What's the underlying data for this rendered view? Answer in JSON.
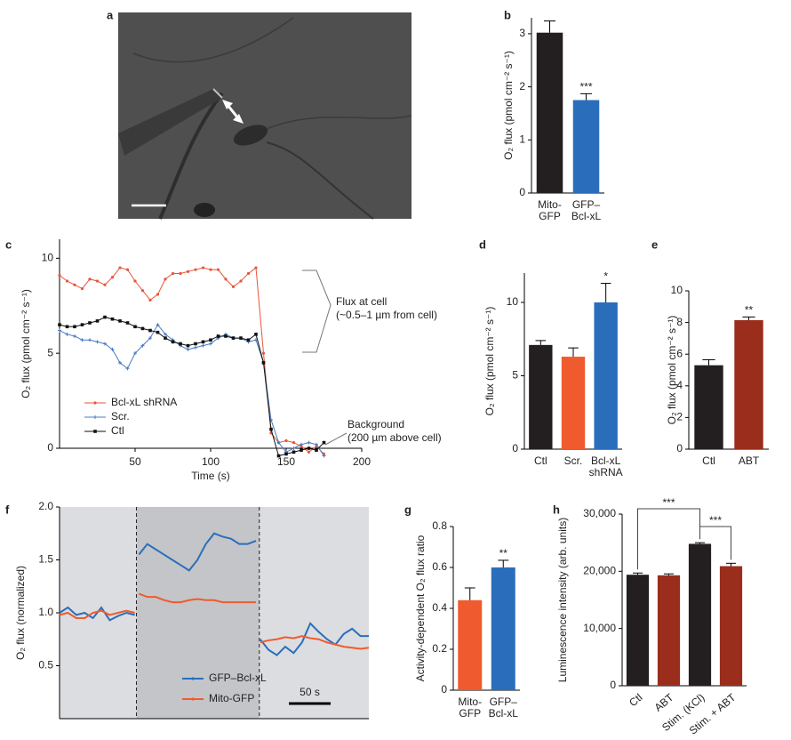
{
  "chart_data": [
    {
      "type": "image",
      "panel": "a"
    },
    {
      "type": "bar",
      "panel": "b",
      "ylabel": "O₂ flux (pmol cm⁻² s⁻¹)",
      "categories": [
        [
          "Mito-",
          "GFP"
        ],
        [
          "GFP–",
          "Bcl-xL"
        ]
      ],
      "values": [
        3.02,
        1.75
      ],
      "errors": [
        0.22,
        0.12
      ],
      "colors": [
        "#231f20",
        "#2a6ebb"
      ],
      "significance": [
        null,
        "***"
      ],
      "ylim": [
        0,
        3.3
      ],
      "yticks": [
        0,
        1,
        2,
        3
      ]
    },
    {
      "type": "line",
      "panel": "c",
      "xlabel": "Time (s)",
      "ylabel": "O₂ flux (pmol cm⁻² s⁻¹)",
      "x": [
        0,
        5,
        10,
        15,
        20,
        25,
        30,
        35,
        40,
        45,
        50,
        55,
        60,
        65,
        70,
        75,
        80,
        85,
        90,
        95,
        100,
        105,
        110,
        115,
        120,
        125,
        130,
        135,
        140,
        145,
        150,
        155,
        160,
        165,
        170,
        175
      ],
      "series": [
        {
          "name": "Bcl-xL shRNA",
          "color": "#e8553a",
          "marker": "dot",
          "values": [
            9.1,
            8.8,
            8.6,
            8.4,
            8.9,
            8.8,
            8.6,
            9.0,
            9.5,
            9.4,
            8.8,
            8.3,
            7.8,
            8.1,
            8.9,
            9.2,
            9.2,
            9.3,
            9.4,
            9.5,
            9.4,
            9.4,
            8.9,
            8.5,
            8.8,
            9.2,
            9.5,
            5.0,
            0.8,
            0.3,
            0.4,
            0.3,
            0.1,
            -0.2,
            0.1,
            -0.3
          ]
        },
        {
          "name": "Scr.",
          "color": "#4a7cc0",
          "marker": "plus",
          "values": [
            6.2,
            6.0,
            5.9,
            5.7,
            5.7,
            5.6,
            5.5,
            5.2,
            4.5,
            4.2,
            5.0,
            5.4,
            5.8,
            6.5,
            6.0,
            5.7,
            5.4,
            5.2,
            5.3,
            5.4,
            5.5,
            5.8,
            6.0,
            5.8,
            5.8,
            5.6,
            5.7,
            4.5,
            1.5,
            0.3,
            -0.2,
            0.0,
            0.2,
            0.3,
            0.2,
            -0.4
          ]
        },
        {
          "name": "Ctl",
          "color": "#111111",
          "marker": "square",
          "values": [
            6.5,
            6.4,
            6.4,
            6.5,
            6.6,
            6.7,
            6.9,
            6.8,
            6.7,
            6.6,
            6.4,
            6.3,
            6.2,
            6.1,
            5.8,
            5.6,
            5.5,
            5.4,
            5.5,
            5.6,
            5.7,
            5.9,
            5.9,
            5.8,
            5.8,
            5.7,
            6.0,
            4.5,
            1.0,
            -0.4,
            -0.3,
            -0.2,
            -0.1,
            0.0,
            -0.1,
            0.3
          ]
        }
      ],
      "xlim": [
        0,
        200
      ],
      "xticks": [
        50,
        100,
        150,
        200
      ],
      "ylim": [
        0,
        11
      ],
      "yticks": [
        0,
        5,
        10
      ],
      "legend": "lower left",
      "annotations": [
        [
          "Flux at cell",
          "(~0.5–1 µm from cell)"
        ],
        [
          "Background",
          "(200 µm above cell)"
        ]
      ]
    },
    {
      "type": "bar",
      "panel": "d",
      "ylabel": "O₂ flux (pmol cm⁻² s⁻¹)",
      "categories": [
        [
          "Ctl"
        ],
        [
          "Scr."
        ],
        [
          "Bcl-xL",
          "shRNA"
        ]
      ],
      "values": [
        7.1,
        6.3,
        10.0
      ],
      "errors": [
        0.3,
        0.6,
        1.3
      ],
      "colors": [
        "#231f20",
        "#ef5b2e",
        "#2a6ebb"
      ],
      "significance": [
        null,
        null,
        "*"
      ],
      "ylim": [
        0,
        12
      ],
      "yticks": [
        0,
        5,
        10
      ]
    },
    {
      "type": "bar",
      "panel": "e",
      "ylabel": "O₂ flux (pmol cm⁻² s⁻¹)",
      "categories": [
        [
          "Ctl"
        ],
        [
          "ABT"
        ]
      ],
      "values": [
        5.3,
        8.15
      ],
      "errors": [
        0.35,
        0.2
      ],
      "colors": [
        "#231f20",
        "#9b2d1c"
      ],
      "significance": [
        null,
        "**"
      ],
      "ylim": [
        0,
        10
      ],
      "yticks": [
        0,
        2,
        4,
        6,
        8,
        10
      ]
    },
    {
      "type": "line",
      "panel": "f",
      "ylabel": "O₂ flux (normalized)",
      "x": [
        0,
        10,
        20,
        30,
        40,
        50,
        60,
        70,
        80,
        90,
        92,
        95,
        105,
        115,
        125,
        135,
        145,
        155,
        165,
        175,
        185,
        195,
        205,
        215,
        225,
        235,
        237,
        240,
        250,
        260,
        270,
        280,
        290,
        300,
        310,
        320,
        330,
        340,
        350,
        360,
        370
      ],
      "series": [
        {
          "name": "GFP–Bcl-xL",
          "color": "#2a6ebb",
          "values": [
            1.0,
            1.05,
            0.98,
            1.0,
            0.95,
            1.05,
            0.93,
            0.97,
            1.0,
            0.98,
            null,
            1.55,
            1.65,
            1.6,
            1.55,
            1.5,
            1.45,
            1.4,
            1.5,
            1.65,
            1.75,
            1.72,
            1.7,
            1.65,
            1.65,
            1.68,
            null,
            0.75,
            0.65,
            0.6,
            0.68,
            0.62,
            0.72,
            0.9,
            0.82,
            0.75,
            0.7,
            0.8,
            0.85,
            0.78,
            0.78
          ]
        },
        {
          "name": "Mito-GFP",
          "color": "#ef5b2e",
          "values": [
            0.98,
            1.0,
            0.95,
            0.95,
            1.0,
            1.02,
            0.98,
            1.0,
            1.02,
            1.0,
            null,
            1.18,
            1.15,
            1.15,
            1.12,
            1.1,
            1.1,
            1.12,
            1.13,
            1.12,
            1.12,
            1.1,
            1.1,
            1.1,
            1.1,
            1.1,
            null,
            0.72,
            0.74,
            0.75,
            0.77,
            0.76,
            0.78,
            0.76,
            0.75,
            0.72,
            0.7,
            0.68,
            0.67,
            0.66,
            0.67
          ]
        }
      ],
      "xlim": [
        0,
        370
      ],
      "ylim": [
        0,
        2
      ],
      "yticks": [
        0.5,
        {
          "value": 1,
          "label": "1.0"
        },
        1.5,
        {
          "value": 2,
          "label": "2.0"
        }
      ],
      "shaded": [
        92,
        239
      ],
      "legend": "lower center",
      "scalebar": {
        "value": 50,
        "label": "50 s"
      }
    },
    {
      "type": "bar",
      "panel": "g",
      "ylabel": "Activity-dependent O₂ flux ratio",
      "categories": [
        [
          "Mito-",
          "GFP"
        ],
        [
          "GFP–",
          "Bcl-xL"
        ]
      ],
      "values": [
        0.44,
        0.6
      ],
      "errors": [
        0.06,
        0.035
      ],
      "colors": [
        "#ef5b2e",
        "#2a6ebb"
      ],
      "significance": [
        null,
        "**"
      ],
      "ylim": [
        0,
        0.8
      ],
      "yticks": [
        0,
        0.2,
        0.4,
        0.6,
        0.8
      ]
    },
    {
      "type": "bar",
      "panel": "h",
      "ylabel": "Luminescence intensity (arb. units)",
      "categories": [
        [
          "Ctl"
        ],
        [
          "ABT"
        ],
        [
          "Stim. (KCl)"
        ],
        [
          "Stim. + ABT"
        ]
      ],
      "values": [
        19400,
        19300,
        24800,
        20900
      ],
      "errors": [
        300,
        250,
        200,
        500
      ],
      "colors": [
        "#231f20",
        "#9b2d1c",
        "#231f20",
        "#9b2d1c"
      ],
      "rotate_labels": true,
      "ylim": [
        0,
        30000
      ],
      "yticks": [
        0,
        {
          "value": 10000,
          "label": "10,000"
        },
        {
          "value": 20000,
          "label": "20,000"
        },
        {
          "value": 30000,
          "label": "30,000"
        }
      ],
      "brackets": [
        {
          "from": 0,
          "to": 2,
          "text": "***"
        },
        {
          "from": 2,
          "to": 3,
          "text": "***"
        }
      ]
    }
  ]
}
